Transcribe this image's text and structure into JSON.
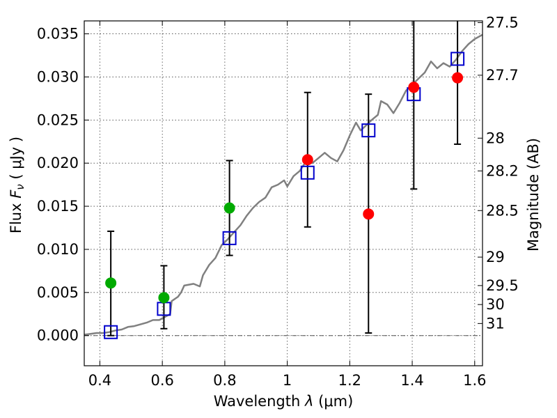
{
  "chart_data": {
    "type": "scatter",
    "xlabel_text": "Wavelength  ",
    "xlabel_symbol": "λ",
    "xlabel_unit": " (μm)",
    "ylabel_text": "Flux  ",
    "ylabel_symbol": "F",
    "ylabel_subscript": "ν",
    "ylabel_unit": "  ( μJy )",
    "y2label": "Magnitude (AB)",
    "xlim": [
      0.35,
      1.625
    ],
    "ylim": [
      -0.0035,
      0.0365
    ],
    "grid": true,
    "x_ticks": [
      0.4,
      0.6,
      0.8,
      1.0,
      1.2,
      1.4,
      1.6
    ],
    "x_tick_labels": [
      "0.4",
      "0.6",
      "0.8",
      "1",
      "1.2",
      "1.4",
      "1.6"
    ],
    "y_ticks": [
      0.0,
      0.005,
      0.01,
      0.015,
      0.02,
      0.025,
      0.03,
      0.035
    ],
    "y_tick_labels": [
      "0.000",
      "0.005",
      "0.010",
      "0.015",
      "0.020",
      "0.025",
      "0.030",
      "0.035"
    ],
    "magnitude_ticks": [
      {
        "label": "27.5",
        "flux": 0.0363
      },
      {
        "label": "27.7",
        "flux": 0.0302
      },
      {
        "label": "28",
        "flux": 0.0229
      },
      {
        "label": "28.2",
        "flux": 0.0191
      },
      {
        "label": "28.5",
        "flux": 0.0145
      },
      {
        "label": "29",
        "flux": 0.0091
      },
      {
        "label": "29.5",
        "flux": 0.0058
      },
      {
        "label": "30",
        "flux": 0.0036
      },
      {
        "label": "31",
        "flux": 0.0014
      }
    ],
    "series": [
      {
        "type": "line",
        "color": "#808080",
        "points": [
          [
            0.35,
            0.0001
          ],
          [
            0.37,
            0.0002
          ],
          [
            0.39,
            0.0003
          ],
          [
            0.41,
            0.0003
          ],
          [
            0.43,
            0.0004
          ],
          [
            0.45,
            0.0006
          ],
          [
            0.47,
            0.0007
          ],
          [
            0.49,
            0.001
          ],
          [
            0.51,
            0.0011
          ],
          [
            0.53,
            0.0013
          ],
          [
            0.55,
            0.0015
          ],
          [
            0.57,
            0.0018
          ],
          [
            0.59,
            0.0018
          ],
          [
            0.61,
            0.0022
          ],
          [
            0.625,
            0.0025
          ],
          [
            0.63,
            0.004
          ],
          [
            0.65,
            0.0045
          ],
          [
            0.66,
            0.005
          ],
          [
            0.67,
            0.0058
          ],
          [
            0.7,
            0.006
          ],
          [
            0.72,
            0.0057
          ],
          [
            0.73,
            0.007
          ],
          [
            0.75,
            0.0082
          ],
          [
            0.77,
            0.009
          ],
          [
            0.79,
            0.0105
          ],
          [
            0.81,
            0.0112
          ],
          [
            0.83,
            0.012
          ],
          [
            0.85,
            0.0128
          ],
          [
            0.87,
            0.0139
          ],
          [
            0.89,
            0.0148
          ],
          [
            0.91,
            0.0155
          ],
          [
            0.93,
            0.016
          ],
          [
            0.95,
            0.0172
          ],
          [
            0.97,
            0.0175
          ],
          [
            0.99,
            0.018
          ],
          [
            1.0,
            0.0173
          ],
          [
            1.02,
            0.0185
          ],
          [
            1.04,
            0.0191
          ],
          [
            1.06,
            0.0202
          ],
          [
            1.08,
            0.02
          ],
          [
            1.1,
            0.0206
          ],
          [
            1.12,
            0.0212
          ],
          [
            1.14,
            0.0206
          ],
          [
            1.16,
            0.0202
          ],
          [
            1.18,
            0.0215
          ],
          [
            1.2,
            0.0232
          ],
          [
            1.22,
            0.0247
          ],
          [
            1.235,
            0.0238
          ],
          [
            1.25,
            0.0243
          ],
          [
            1.27,
            0.025
          ],
          [
            1.29,
            0.0256
          ],
          [
            1.3,
            0.0272
          ],
          [
            1.32,
            0.0268
          ],
          [
            1.34,
            0.0258
          ],
          [
            1.36,
            0.027
          ],
          [
            1.38,
            0.0284
          ],
          [
            1.4,
            0.0291
          ],
          [
            1.42,
            0.0298
          ],
          [
            1.44,
            0.0305
          ],
          [
            1.46,
            0.0318
          ],
          [
            1.48,
            0.031
          ],
          [
            1.5,
            0.0316
          ],
          [
            1.52,
            0.0312
          ],
          [
            1.54,
            0.032
          ],
          [
            1.56,
            0.033
          ],
          [
            1.58,
            0.0338
          ],
          [
            1.6,
            0.0344
          ],
          [
            1.625,
            0.0349
          ]
        ]
      },
      {
        "type": "squares",
        "color": "#0000cc",
        "points": [
          [
            0.435,
            0.0004
          ],
          [
            0.605,
            0.0031
          ],
          [
            0.815,
            0.0113
          ],
          [
            1.065,
            0.0189
          ],
          [
            1.26,
            0.0238
          ],
          [
            1.405,
            0.028
          ],
          [
            1.545,
            0.0321
          ]
        ]
      },
      {
        "type": "circles",
        "color": "#00aa00",
        "points": [
          [
            0.435,
            0.0061
          ],
          [
            0.605,
            0.0044
          ],
          [
            0.815,
            0.0148
          ]
        ]
      },
      {
        "type": "circles",
        "color": "#ff0000",
        "points": [
          [
            1.065,
            0.0204
          ],
          [
            1.26,
            0.0141
          ],
          [
            1.405,
            0.0288
          ],
          [
            1.545,
            0.0299
          ]
        ]
      }
    ],
    "error_bars": [
      {
        "x": 0.435,
        "low": 0.0,
        "high": 0.0121
      },
      {
        "x": 0.605,
        "low": 0.0008,
        "high": 0.0081
      },
      {
        "x": 0.815,
        "low": 0.0093,
        "high": 0.0203
      },
      {
        "x": 1.065,
        "low": 0.0126,
        "high": 0.0282
      },
      {
        "x": 1.26,
        "low": 0.0003,
        "high": 0.028
      },
      {
        "x": 1.405,
        "low": 0.017,
        "high": 0.0365
      },
      {
        "x": 1.545,
        "low": 0.0222,
        "high": 0.0365
      }
    ]
  }
}
